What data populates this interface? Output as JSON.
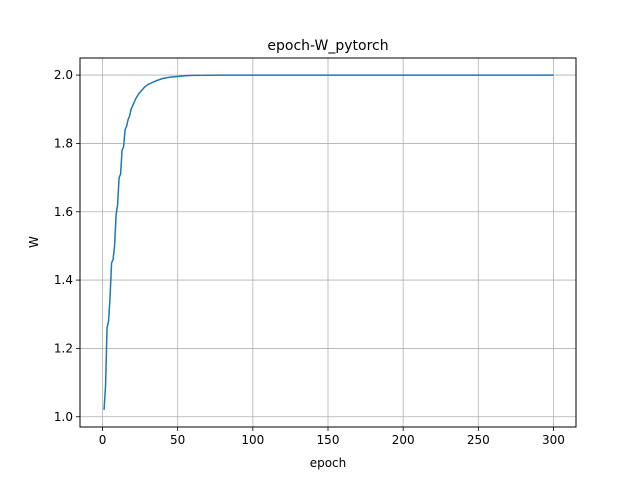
{
  "chart_data": {
    "type": "line",
    "title": "epoch-W_pytorch",
    "xlabel": "epoch",
    "ylabel": "W",
    "xlim": [
      -15,
      315
    ],
    "ylim": [
      0.97,
      2.05
    ],
    "xticks": [
      0,
      50,
      100,
      150,
      200,
      250,
      300
    ],
    "xtick_labels": [
      "0",
      "50",
      "100",
      "150",
      "200",
      "250",
      "300"
    ],
    "yticks": [
      1.0,
      1.2,
      1.4,
      1.6,
      1.8,
      2.0
    ],
    "ytick_labels": [
      "1.0",
      "1.2",
      "1.4",
      "1.6",
      "1.8",
      "2.0"
    ],
    "grid": true,
    "color": "#1f77b4",
    "series": [
      {
        "x": [
          1,
          2,
          3,
          4,
          5,
          6,
          7,
          8,
          9,
          10,
          11,
          12,
          13,
          14,
          15,
          16,
          17,
          18,
          19,
          20,
          21,
          22,
          24,
          26,
          28,
          30,
          33,
          36,
          40,
          45,
          50,
          55,
          60,
          70,
          80,
          100,
          150,
          200,
          250,
          300
        ],
        "values": [
          1.02,
          1.09,
          1.26,
          1.28,
          1.35,
          1.45,
          1.46,
          1.5,
          1.59,
          1.62,
          1.7,
          1.71,
          1.78,
          1.79,
          1.84,
          1.85,
          1.87,
          1.88,
          1.9,
          1.91,
          1.92,
          1.93,
          1.945,
          1.955,
          1.965,
          1.972,
          1.978,
          1.984,
          1.99,
          1.994,
          1.996,
          1.998,
          1.999,
          1.9995,
          2.0,
          2.0,
          2.0,
          2.0,
          2.0,
          2.0
        ]
      }
    ]
  }
}
